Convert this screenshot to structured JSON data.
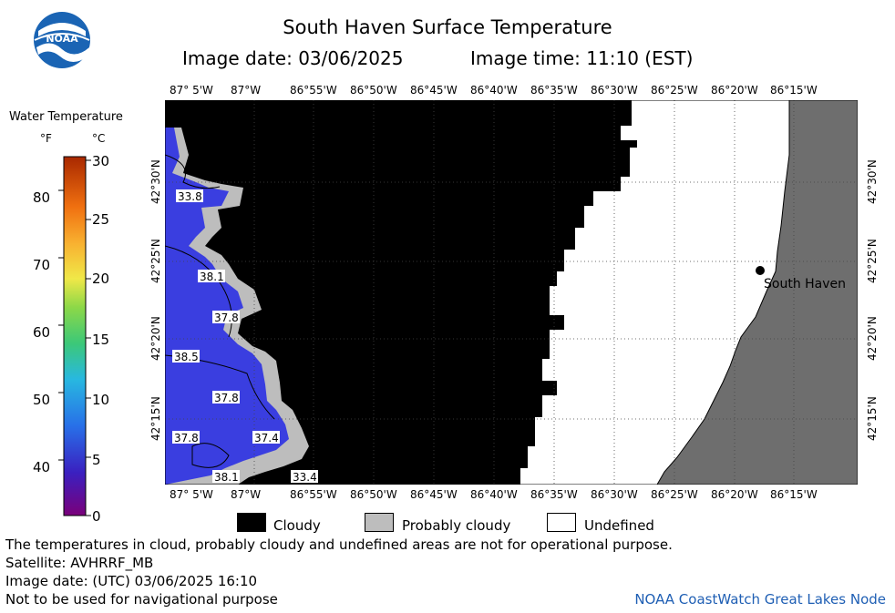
{
  "header": {
    "title": "South Haven Surface Temperature",
    "image_date": "Image date: 03/06/2025",
    "image_time": "Image time: 11:10 (EST)"
  },
  "logo": {
    "icon": "noaa-logo",
    "text": "NOAA"
  },
  "colorbar": {
    "title": "Water Temperature",
    "unit_f": "°F",
    "unit_c": "°C",
    "f_ticks": [
      "80",
      "70",
      "60",
      "50",
      "40"
    ],
    "c_ticks": [
      "30",
      "25",
      "20",
      "15",
      "10",
      "5",
      "0"
    ]
  },
  "map": {
    "lon_labels": [
      "87° 5'W",
      "87°W",
      "86°55'W",
      "86°50'W",
      "86°45'W",
      "86°40'W",
      "86°35'W",
      "86°30'W",
      "86°25'W",
      "86°20'W",
      "86°15'W"
    ],
    "lat_labels": [
      "42°30'N",
      "42°25'N",
      "42°20'N",
      "42°15'N"
    ],
    "place": "South Haven",
    "temp_labels": [
      "33.8",
      "38.1",
      "37.8",
      "38.5",
      "37.8",
      "37.8",
      "37.4",
      "38.1",
      "33.4"
    ],
    "colors": {
      "water": "#3a3ee0",
      "cloud": "#000000",
      "probably_cloudy": "#bdbdbd",
      "land": "#6e6e6e",
      "undefined": "#ffffff"
    }
  },
  "legend": {
    "cloudy": "Cloudy",
    "probably_cloudy": "Probably cloudy",
    "undefined": "Undefined"
  },
  "footer": {
    "disclaimer": "The temperatures in cloud, probably cloudy and undefined areas are not for operational purpose.",
    "satellite": "Satellite: AVHRRF_MB",
    "utc_date": "Image date: (UTC) 03/06/2025  16:10",
    "nav_note": "Not to be used for navigational purpose",
    "credit": "NOAA CoastWatch Great Lakes Node"
  }
}
